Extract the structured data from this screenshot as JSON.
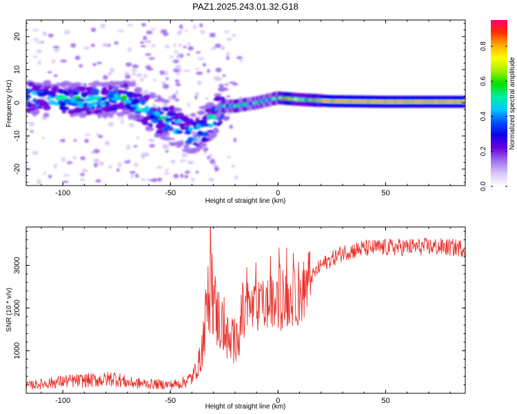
{
  "title": "PAZ1.2025.243.01.32.G18",
  "chart_data": [
    {
      "type": "heatmap",
      "xlabel": "Height of straight line (km)",
      "ylabel": "Frequency (Hz)",
      "xlim": [
        -117,
        87
      ],
      "ylim": [
        -25,
        25
      ],
      "xticks": [
        -100,
        -50,
        0,
        50
      ],
      "yticks": [
        -20,
        -10,
        0,
        10,
        20
      ],
      "colorbar": {
        "label": "Normalized spectral amplitude",
        "range": [
          0,
          0.95
        ],
        "ticks": [
          "0.0",
          "0.2",
          "0.4",
          "0.6",
          "0.8"
        ],
        "colors": [
          "#ffffff",
          "#d8c8f8",
          "#a070f0",
          "#6a00e0",
          "#1000e8",
          "#0050ff",
          "#00c8ff",
          "#00f0a0",
          "#00e000",
          "#a0f000",
          "#ffff00",
          "#ffb000",
          "#ff3000",
          "#ff0070"
        ]
      },
      "ridge": [
        {
          "x": -115,
          "f": 1.5
        },
        {
          "x": -100,
          "f": 1.0
        },
        {
          "x": -80,
          "f": 1.0
        },
        {
          "x": -70,
          "f": 1.5
        },
        {
          "x": -60,
          "f": -3
        },
        {
          "x": -50,
          "f": -6
        },
        {
          "x": -40,
          "f": -10
        },
        {
          "x": -32,
          "f": -6
        },
        {
          "x": -26,
          "f": -1
        },
        {
          "x": -20,
          "f": -1
        },
        {
          "x": -10,
          "f": 0
        },
        {
          "x": 0,
          "f": 1.5
        },
        {
          "x": 10,
          "f": 1.0
        },
        {
          "x": 25,
          "f": 0.5
        },
        {
          "x": 50,
          "f": 0.3
        },
        {
          "x": 87,
          "f": 0.3
        }
      ]
    },
    {
      "type": "line",
      "xlabel": "Height of straight line (km)",
      "ylabel": "SNR (10 * v/v)",
      "xlim": [
        -117,
        87
      ],
      "ylim": [
        0,
        3900
      ],
      "xticks": [
        -100,
        -50,
        0,
        50
      ],
      "yticks": [
        1000,
        2000,
        3000
      ],
      "color": "#e8302a",
      "series": [
        {
          "name": "SNR",
          "x": [
            -117,
            -110,
            -100,
            -90,
            -80,
            -76,
            -70,
            -60,
            -50,
            -45,
            -40,
            -36,
            -33,
            -31,
            -29,
            -27,
            -25,
            -22,
            -19,
            -17,
            -15,
            -10,
            -5,
            0,
            5,
            10,
            15,
            20,
            25,
            30,
            40,
            50,
            60,
            70,
            80,
            87
          ],
          "values": [
            180,
            220,
            280,
            300,
            320,
            360,
            250,
            220,
            200,
            230,
            360,
            800,
            2000,
            2700,
            1900,
            1700,
            1500,
            1100,
            1350,
            1750,
            1950,
            2000,
            2100,
            2050,
            2200,
            2250,
            2700,
            3000,
            3150,
            3300,
            3400,
            3420,
            3430,
            3440,
            3420,
            3400
          ]
        }
      ]
    }
  ]
}
